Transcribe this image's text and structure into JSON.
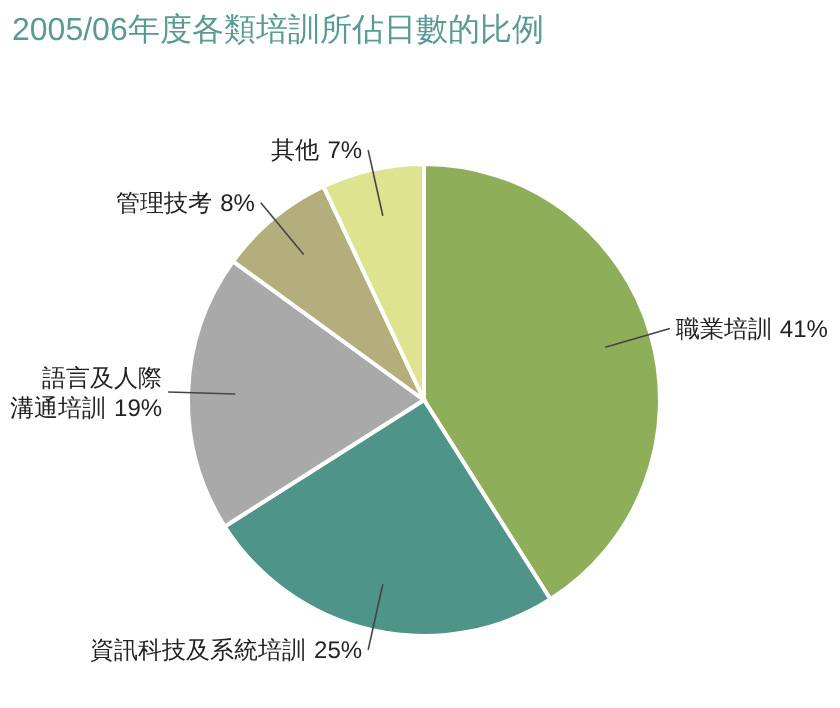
{
  "chart_data": {
    "type": "pie",
    "title": "2005/06年度各類培訓所佔日數的比例",
    "categories": [
      "職業培訓",
      "資訊科技及系統培訓",
      "語言及人際溝通培訓",
      "管理技考",
      "其他"
    ],
    "values": [
      41,
      25,
      19,
      8,
      7
    ],
    "value_labels": [
      "41%",
      "25%",
      "19%",
      "8%",
      "7%"
    ],
    "colors": [
      "#8fae5a",
      "#4f9488",
      "#a9a9a9",
      "#b3ae7c",
      "#dde38f"
    ]
  }
}
